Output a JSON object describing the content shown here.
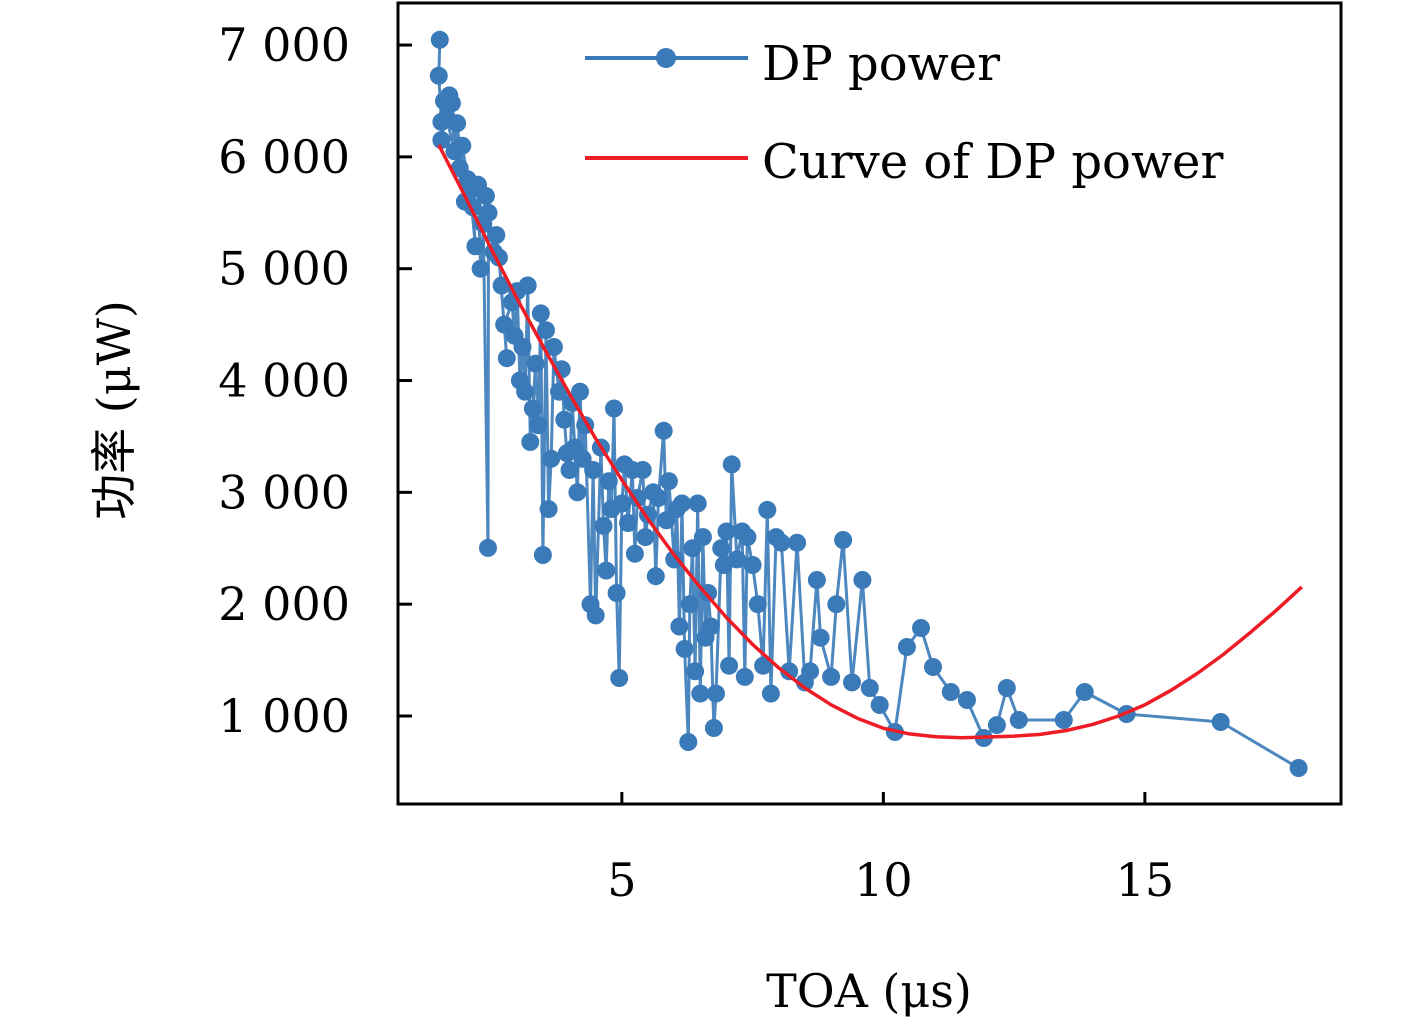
{
  "chart_data": {
    "type": "line",
    "title": "",
    "xlabel": "TOA (μs)",
    "ylabel": "功率 (μW)",
    "xlim": [
      0.72,
      18.75
    ],
    "ylim": [
      213,
      7376
    ],
    "xticks": [
      5,
      10,
      15
    ],
    "xtick_labels": [
      "5",
      "10",
      "15"
    ],
    "yticks": [
      1000,
      2000,
      3000,
      4000,
      5000,
      6000,
      7000
    ],
    "ytick_labels": [
      "1 000",
      "2 000",
      "3 000",
      "4 000",
      "5 000",
      "6 000",
      "7 000"
    ],
    "grid": false,
    "legend": {
      "position": "top-right",
      "entries": [
        {
          "label": "DP power",
          "color": "#3a7ab8",
          "marker": "circle"
        },
        {
          "label": "Curve of DP power",
          "color": "#ee1c25",
          "marker": "none"
        }
      ]
    },
    "series": [
      {
        "name": "DP power",
        "color": "#3a7ab8",
        "x": [
          1.52,
          1.5,
          1.55,
          1.6,
          1.55,
          1.7,
          1.65,
          1.8,
          1.75,
          1.9,
          1.85,
          2.0,
          1.95,
          2.05,
          2.1,
          2.2,
          2.15,
          2.25,
          2.3,
          2.4,
          2.35,
          2.44,
          2.45,
          2.55,
          2.6,
          2.7,
          2.65,
          2.8,
          2.75,
          2.9,
          2.95,
          3.0,
          3.05,
          3.1,
          3.15,
          3.2,
          3.25,
          3.3,
          3.35,
          3.4,
          3.45,
          3.49,
          3.55,
          3.6,
          3.65,
          3.7,
          3.8,
          3.85,
          3.9,
          3.95,
          4.0,
          4.05,
          4.1,
          4.15,
          4.2,
          4.25,
          4.3,
          4.4,
          4.45,
          4.5,
          4.6,
          4.65,
          4.7,
          4.75,
          4.8,
          4.85,
          4.9,
          4.95,
          5.0,
          5.05,
          5.12,
          5.2,
          5.25,
          5.3,
          5.4,
          5.45,
          5.5,
          5.6,
          5.65,
          5.7,
          5.8,
          5.85,
          5.9,
          6.0,
          6.05,
          6.1,
          6.15,
          6.2,
          6.27,
          6.3,
          6.35,
          6.4,
          6.45,
          6.5,
          6.55,
          6.6,
          6.65,
          6.7,
          6.76,
          6.8,
          6.9,
          6.95,
          7.0,
          7.05,
          7.1,
          7.2,
          7.3,
          7.35,
          7.4,
          7.5,
          7.6,
          7.7,
          7.78,
          7.85,
          7.95,
          8.05,
          8.2,
          8.35,
          8.5,
          8.6,
          8.73,
          8.8,
          9.0,
          9.1,
          9.23,
          9.4,
          9.6,
          9.74,
          9.93,
          10.22,
          10.45,
          10.72,
          10.95,
          11.29,
          11.6,
          11.92,
          12.17,
          12.36,
          12.59,
          13.45,
          13.85,
          14.65,
          16.45,
          17.94
        ],
        "values": [
          7047,
          6725,
          6313,
          6500,
          6150,
          6550,
          6350,
          6050,
          6480,
          5900,
          6300,
          5600,
          6100,
          5800,
          5700,
          5200,
          5550,
          5750,
          5000,
          5650,
          5400,
          2503,
          5500,
          5150,
          5300,
          4850,
          5100,
          4200,
          4500,
          4700,
          4400,
          4800,
          4000,
          4300,
          3900,
          4850,
          3450,
          3750,
          4150,
          3600,
          4600,
          2440,
          4450,
          2850,
          3300,
          4300,
          3900,
          4100,
          3650,
          3350,
          3200,
          3800,
          3400,
          3000,
          3900,
          3300,
          3600,
          2000,
          3200,
          1900,
          3400,
          2700,
          2300,
          3100,
          2850,
          3750,
          2100,
          1340,
          2900,
          3250,
          2726,
          3200,
          2450,
          2950,
          3200,
          2600,
          2800,
          3000,
          2250,
          2950,
          3550,
          2750,
          3100,
          2400,
          2850,
          1800,
          2900,
          1600,
          767,
          2000,
          2500,
          1400,
          2900,
          1200,
          2600,
          1700,
          2100,
          1800,
          893,
          1200,
          2500,
          2350,
          2650,
          1450,
          3250,
          2400,
          2650,
          1350,
          2600,
          2350,
          2000,
          1450,
          2843,
          1200,
          2600,
          2550,
          1400,
          2550,
          1300,
          1400,
          2216,
          1700,
          1350,
          2000,
          2574,
          1300,
          2216,
          1250,
          1098,
          857,
          1617,
          1787,
          1438,
          1215,
          1143,
          803,
          919,
          1250,
          964,
          964,
          1215,
          1018,
          946,
          535
        ]
      },
      {
        "name": "Curve of DP power",
        "color": "#ee1c25",
        "x": [
          1.5,
          2.0,
          2.5,
          3.0,
          3.5,
          4.0,
          4.5,
          5.0,
          5.5,
          6.0,
          6.5,
          7.0,
          7.5,
          8.0,
          8.5,
          9.0,
          9.5,
          10.0,
          10.5,
          11.0,
          11.5,
          12.0,
          12.5,
          13.0,
          13.5,
          14.0,
          14.5,
          15.0,
          15.5,
          16.0,
          16.5,
          17.0,
          17.5,
          18.0
        ],
        "values": [
          6107,
          5650,
          5180,
          4730,
          4300,
          3880,
          3480,
          3110,
          2760,
          2440,
          2150,
          1880,
          1640,
          1430,
          1250,
          1100,
          980,
          890,
          840,
          815,
          805,
          812,
          820,
          835,
          870,
          925,
          1000,
          1100,
          1230,
          1380,
          1550,
          1740,
          1940,
          2154
        ]
      }
    ]
  }
}
